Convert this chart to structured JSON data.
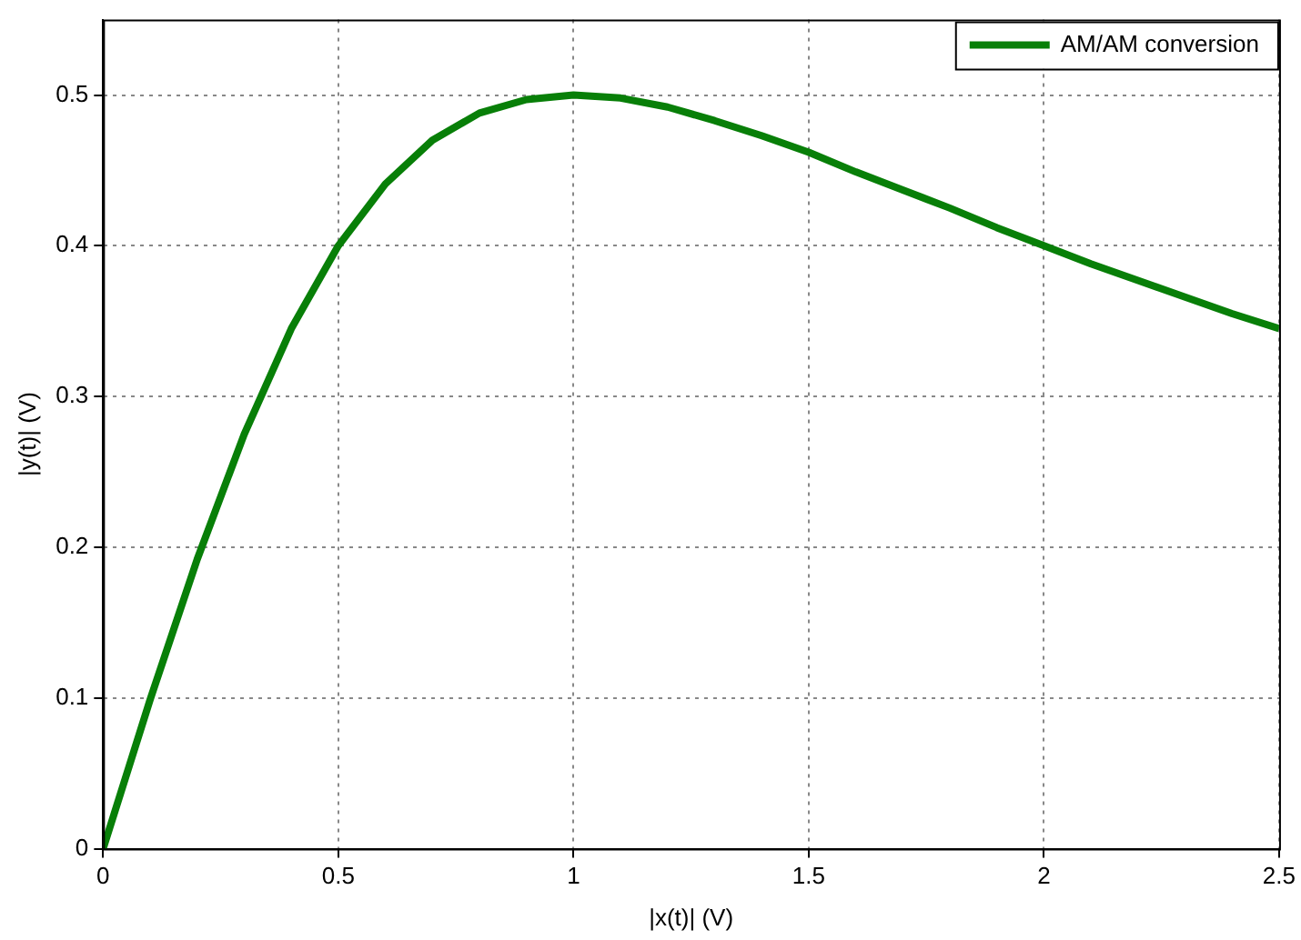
{
  "chart_data": {
    "type": "line",
    "xlabel": "|x(t)| (V)",
    "ylabel": "|y(t)| (V)",
    "x": [
      0,
      0.1,
      0.2,
      0.3,
      0.4,
      0.5,
      0.6,
      0.7,
      0.8,
      0.9,
      1.0,
      1.1,
      1.2,
      1.3,
      1.4,
      1.5,
      1.6,
      1.7,
      1.8,
      1.9,
      2.0,
      2.1,
      2.2,
      2.3,
      2.4,
      2.5
    ],
    "series": [
      {
        "name": "AM/AM conversion",
        "color": "#087f08",
        "values": [
          0,
          0.099,
          0.192,
          0.275,
          0.345,
          0.4,
          0.441,
          0.47,
          0.488,
          0.497,
          0.5,
          0.498,
          0.492,
          0.483,
          0.473,
          0.462,
          0.449,
          0.437,
          0.425,
          0.412,
          0.4,
          0.388,
          0.377,
          0.366,
          0.355,
          0.345
        ]
      }
    ],
    "xlim": [
      0,
      2.5
    ],
    "xticks": [
      0,
      0.5,
      1,
      1.5,
      2,
      2.5
    ],
    "ylim": [
      0,
      0.55
    ],
    "yticks": [
      0,
      0.1,
      0.2,
      0.3,
      0.4,
      0.5
    ],
    "grid": true,
    "legend": "top right",
    "marker": "none",
    "line_style": "solid"
  }
}
